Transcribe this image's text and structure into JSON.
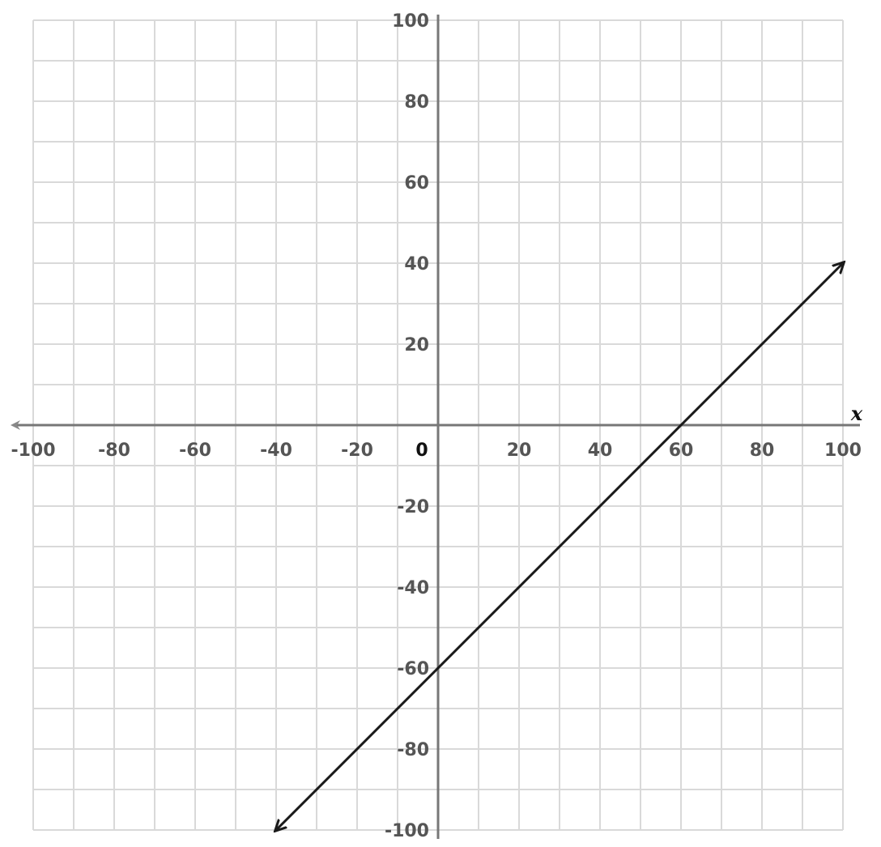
{
  "chart_data": {
    "type": "line",
    "title": "",
    "xlabel": "x",
    "ylabel": "",
    "xlim": [
      -100,
      100
    ],
    "ylim": [
      -100,
      100
    ],
    "grid": true,
    "grid_step": 10,
    "x_tick_labels": [
      "-100",
      "-80",
      "-60",
      "-40",
      "-20",
      "20",
      "40",
      "60",
      "80",
      "100"
    ],
    "x_tick_values": [
      -100,
      -80,
      -60,
      -40,
      -20,
      20,
      40,
      60,
      80,
      100
    ],
    "y_tick_labels": [
      "100",
      "80",
      "60",
      "40",
      "20",
      "-20",
      "-40",
      "-60",
      "-80",
      "-100"
    ],
    "y_tick_values": [
      100,
      80,
      60,
      40,
      20,
      -20,
      -40,
      -60,
      -80,
      -100
    ],
    "origin_label": "0",
    "series": [
      {
        "x": [
          -40,
          100
        ],
        "y": [
          -100,
          40
        ],
        "arrows_both_ends": true,
        "color": "#1a1a1a"
      }
    ]
  }
}
